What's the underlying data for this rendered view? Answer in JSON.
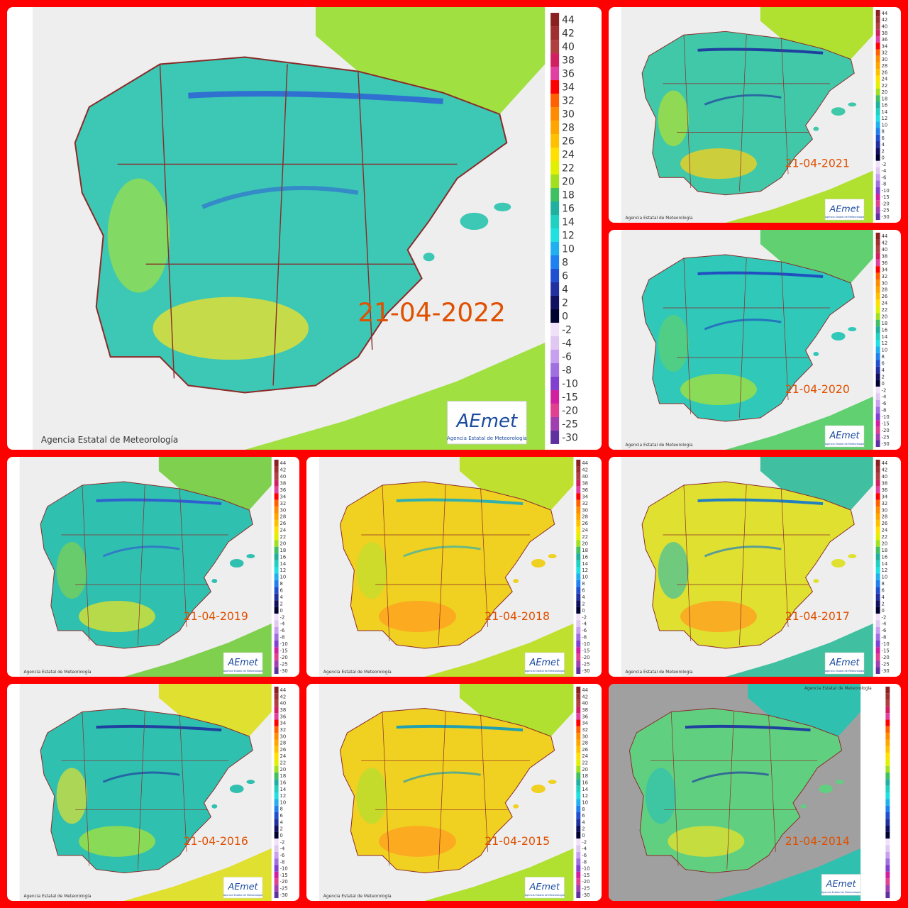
{
  "panels": [
    {
      "date": "21-04-2022",
      "credit": "Agencia Estatal de Meteorología",
      "logo": "AEmet",
      "logo_subtitle": "Agencia Estatal de Meteorología"
    },
    {
      "date": "21-04-2021",
      "credit": "Agencia Estatal de Meteorología",
      "logo": "AEmet",
      "logo_subtitle": "Agencia Estatal de Meteorología"
    },
    {
      "date": "21-04-2020",
      "credit": "Agencia Estatal de Meteorología",
      "logo": "AEmet",
      "logo_subtitle": "Agencia Estatal de Meteorología"
    },
    {
      "date": "21-04-2019",
      "credit": "Agencia Estatal de Meteorología",
      "logo": "AEmet",
      "logo_subtitle": "Agencia Estatal de Meteorología"
    },
    {
      "date": "21-04-2018",
      "credit": "Agencia Estatal de Meteorología",
      "logo": "AEmet",
      "logo_subtitle": "Agencia Estatal de Meteorología"
    },
    {
      "date": "21-04-2017",
      "credit": "Agencia Estatal de Meteorología",
      "logo": "AEmet",
      "logo_subtitle": "Agencia Estatal de Meteorología"
    },
    {
      "date": "21-04-2016",
      "credit": "Agencia Estatal de Meteorología",
      "logo": "AEmet",
      "logo_subtitle": "Agencia Estatal de Meteorología"
    },
    {
      "date": "21-04-2015",
      "credit": "Agencia Estatal de Meteorología",
      "logo": "AEmet",
      "logo_subtitle": "Agencia Estatal de Meteorología"
    },
    {
      "date": "21-04-2014",
      "credit": "Agencia Estatal de Meteorología",
      "logo": "AEmet",
      "logo_subtitle": "Agencia Estatal de Meteorología"
    }
  ],
  "legend": [
    {
      "label": 44,
      "color": "#8b2020"
    },
    {
      "label": 42,
      "color": "#a03030"
    },
    {
      "label": 40,
      "color": "#b04040"
    },
    {
      "label": 38,
      "color": "#d02060"
    },
    {
      "label": 36,
      "color": "#e040a0"
    },
    {
      "label": 34,
      "color": "#ff0000"
    },
    {
      "label": 32,
      "color": "#ff6000"
    },
    {
      "label": 30,
      "color": "#ff8c00"
    },
    {
      "label": 28,
      "color": "#ffa500"
    },
    {
      "label": 26,
      "color": "#ffc000"
    },
    {
      "label": 24,
      "color": "#ffe000"
    },
    {
      "label": 22,
      "color": "#e0f000"
    },
    {
      "label": 20,
      "color": "#a0e020"
    },
    {
      "label": 18,
      "color": "#40c060"
    },
    {
      "label": 16,
      "color": "#20b0a0"
    },
    {
      "label": 14,
      "color": "#20d0c0"
    },
    {
      "label": 12,
      "color": "#20e0e0"
    },
    {
      "label": 10,
      "color": "#20b0f0"
    },
    {
      "label": 8,
      "color": "#2080f0"
    },
    {
      "label": 6,
      "color": "#2050d0"
    },
    {
      "label": 4,
      "color": "#2030a0"
    },
    {
      "label": 2,
      "color": "#101060"
    },
    {
      "label": 0,
      "color": "#000030"
    },
    {
      "label": -2,
      "color": "#f0e0f8"
    },
    {
      "label": -4,
      "color": "#e0c8f0"
    },
    {
      "label": -6,
      "color": "#c8a0f0"
    },
    {
      "label": -8,
      "color": "#a070e0"
    },
    {
      "label": -10,
      "color": "#8040d0"
    },
    {
      "label": -15,
      "color": "#d020a0"
    },
    {
      "label": -20,
      "color": "#e04090"
    },
    {
      "label": -25,
      "color": "#a040b0"
    },
    {
      "label": -30,
      "color": "#6030a0"
    }
  ]
}
